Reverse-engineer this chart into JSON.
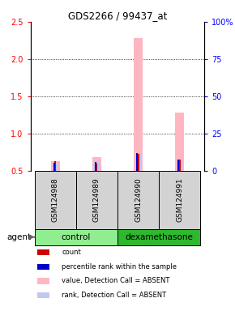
{
  "title": "GDS2266 / 99437_at",
  "samples": [
    "GSM124988",
    "GSM124989",
    "GSM124990",
    "GSM124991"
  ],
  "group_labels": [
    "control",
    "dexamethasone"
  ],
  "group_colors_light": "#90EE90",
  "group_colors_dark": "#2DB82D",
  "ylim_left": [
    0.5,
    2.5
  ],
  "ylim_right": [
    0,
    100
  ],
  "yticks_left": [
    0.5,
    1.0,
    1.5,
    2.0,
    2.5
  ],
  "yticks_right": [
    0,
    25,
    50,
    75,
    100
  ],
  "ytick_labels_right": [
    "0",
    "25",
    "50",
    "75",
    "100%"
  ],
  "bar_value_absent": [
    0.63,
    0.68,
    2.28,
    1.28
  ],
  "bar_rank_absent": [
    0.595,
    0.625,
    0.74,
    0.655
  ],
  "bar_count": [
    0.625,
    0.6,
    0.73,
    0.655
  ],
  "bar_percentile": [
    0.605,
    0.615,
    0.735,
    0.645
  ],
  "color_count": "#cc0000",
  "color_percentile": "#0000cc",
  "color_value_absent": "#FFB6C1",
  "color_rank_absent": "#c0c8f0",
  "legend_items": [
    {
      "label": "count",
      "color": "#cc0000"
    },
    {
      "label": "percentile rank within the sample",
      "color": "#0000cc"
    },
    {
      "label": "value, Detection Call = ABSENT",
      "color": "#FFB6C1"
    },
    {
      "label": "rank, Detection Call = ABSENT",
      "color": "#c0c8f0"
    }
  ],
  "x_positions": [
    0,
    1,
    2,
    3
  ],
  "grid_lines": [
    1.0,
    1.5,
    2.0
  ]
}
